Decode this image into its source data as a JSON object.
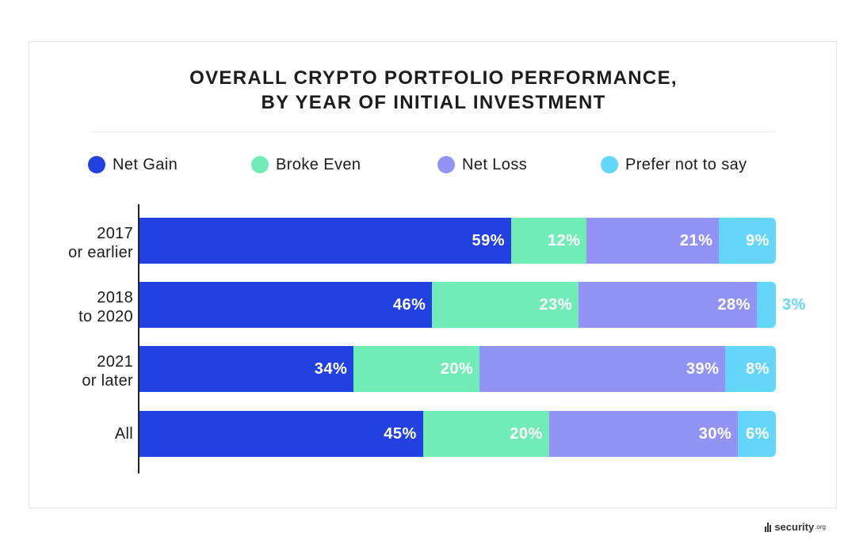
{
  "chart_data": {
    "type": "bar",
    "orientation": "horizontal",
    "stacked": true,
    "title_lines": [
      "OVERALL CRYPTO PORTFOLIO PERFORMANCE,",
      "BY YEAR OF INITIAL INVESTMENT"
    ],
    "legend_position": "top",
    "categories": [
      {
        "line1": "2017",
        "line2": "or earlier"
      },
      {
        "line1": "2018",
        "line2": "to 2020"
      },
      {
        "line1": "2021",
        "line2": "or later"
      },
      {
        "line1": "All",
        "line2": ""
      }
    ],
    "series": [
      {
        "name": "Net Gain",
        "color": "#2340e0",
        "values": [
          59,
          46,
          34,
          45
        ],
        "labels": [
          "59%",
          "46%",
          "34%",
          "45%"
        ]
      },
      {
        "name": "Broke Even",
        "color": "#72ecb6",
        "values": [
          12,
          23,
          20,
          20
        ],
        "labels": [
          "12%",
          "23%",
          "20%",
          "20%"
        ]
      },
      {
        "name": "Net Loss",
        "color": "#9393f5",
        "values": [
          21,
          28,
          39,
          30
        ],
        "labels": [
          "21%",
          "28%",
          "39%",
          "30%"
        ]
      },
      {
        "name": "Prefer not to say",
        "color": "#63d6fa",
        "values": [
          9,
          3,
          8,
          6
        ],
        "labels": [
          "9%",
          "3%",
          "8%",
          "6%"
        ]
      }
    ]
  },
  "brand": {
    "name": "security",
    "suffix": ".org"
  }
}
